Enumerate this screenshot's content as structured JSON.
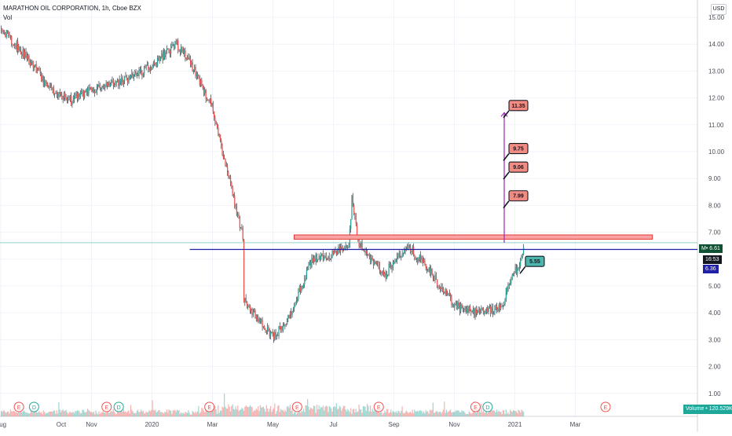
{
  "header": {
    "title_line": "MARATHON OIL CORPORATION, 1h, Cboe BZX",
    "indicator_line": "Vol",
    "currency_button": "USD"
  },
  "price_tags": {
    "last_price_label": "M• 6.61",
    "countdown": "16:53",
    "line_price": "6.36",
    "volume_label": "Volume • 120.529K"
  },
  "colors": {
    "up": "#26a69a",
    "down": "#ef5350",
    "wick": "#131722",
    "line_blue": "#1f1fa8",
    "zone_fill": "#f8a3a3",
    "zone_stroke": "#e53935",
    "target_line": "#9c27b0",
    "grid": "#f0f3fa",
    "axis_text": "#4a4e59"
  },
  "chart_data": {
    "type": "candlestick",
    "title": "MARATHON OIL CORPORATION, 1h, Cboe BZX",
    "xlabel": "",
    "ylabel": "",
    "ylim": [
      0.95,
      15.8
    ],
    "y_ticks": [
      "1.00",
      "2.00",
      "3.00",
      "4.00",
      "5.00",
      "6.00",
      "7.00",
      "8.00",
      "9.00",
      "10.00",
      "11.00",
      "12.00",
      "13.00",
      "14.00",
      "15.00"
    ],
    "x_ticks": [
      "Aug",
      "Oct",
      "Nov",
      "2020",
      "Mar",
      "May",
      "Jul",
      "Sep",
      "Nov",
      "2021",
      "Mar"
    ],
    "x_tick_months": [
      0,
      2,
      3,
      5,
      7,
      9,
      11,
      13,
      15,
      17,
      19
    ],
    "price_path": [
      [
        0,
        14.6
      ],
      [
        1,
        13.3
      ],
      [
        1.5,
        12.4
      ],
      [
        2.3,
        11.9
      ],
      [
        3,
        12.3
      ],
      [
        4,
        12.6
      ],
      [
        5,
        13.2
      ],
      [
        5.8,
        14.0
      ],
      [
        6.3,
        13.2
      ],
      [
        7,
        11.6
      ],
      [
        7.6,
        8.6
      ],
      [
        8,
        6.8
      ],
      [
        8,
        4.6
      ],
      [
        8.5,
        3.7
      ],
      [
        9,
        3.1
      ],
      [
        9.5,
        3.8
      ],
      [
        10,
        5.2
      ],
      [
        10.3,
        6.0
      ],
      [
        11,
        6.2
      ],
      [
        11.5,
        6.5
      ],
      [
        11.6,
        8.3
      ],
      [
        11.8,
        6.6
      ],
      [
        12,
        6.3
      ],
      [
        12.7,
        5.4
      ],
      [
        13,
        6.0
      ],
      [
        13.5,
        6.4
      ],
      [
        14,
        5.8
      ],
      [
        14.5,
        5.0
      ],
      [
        15,
        4.3
      ],
      [
        15.6,
        4.0
      ],
      [
        16.3,
        4.1
      ],
      [
        16.6,
        4.4
      ],
      [
        16.8,
        5.2
      ],
      [
        17.1,
        5.7
      ],
      [
        17.3,
        6.6
      ]
    ],
    "volume_month_range": [
      0,
      17.3
    ],
    "horizontal_line": 6.36,
    "resistance_zone": [
      6.74,
      6.9
    ],
    "target_line_from": 6.61,
    "target_line_to": 11.45,
    "annotations": [
      {
        "label": "11.35",
        "price": 11.35,
        "type": "down"
      },
      {
        "label": "9.75",
        "price": 9.75,
        "type": "down"
      },
      {
        "label": "9.06",
        "price": 9.06,
        "type": "down"
      },
      {
        "label": "7.99",
        "price": 7.99,
        "type": "down"
      },
      {
        "label": "5.55",
        "price": 5.55,
        "type": "up"
      }
    ],
    "events": [
      {
        "month": 0.6,
        "label": "E",
        "kind": "earnings"
      },
      {
        "month": 1.1,
        "label": "D",
        "kind": "dividend"
      },
      {
        "month": 3.5,
        "label": "E",
        "kind": "earnings"
      },
      {
        "month": 3.9,
        "label": "D",
        "kind": "dividend"
      },
      {
        "month": 6.9,
        "label": "E",
        "kind": "earnings"
      },
      {
        "month": 9.8,
        "label": "E",
        "kind": "earnings"
      },
      {
        "month": 12.5,
        "label": "E",
        "kind": "earnings"
      },
      {
        "month": 15.7,
        "label": "E",
        "kind": "earnings"
      },
      {
        "month": 16.1,
        "label": "D",
        "kind": "dividend"
      },
      {
        "month": 20.0,
        "label": "E",
        "kind": "earnings"
      }
    ]
  }
}
